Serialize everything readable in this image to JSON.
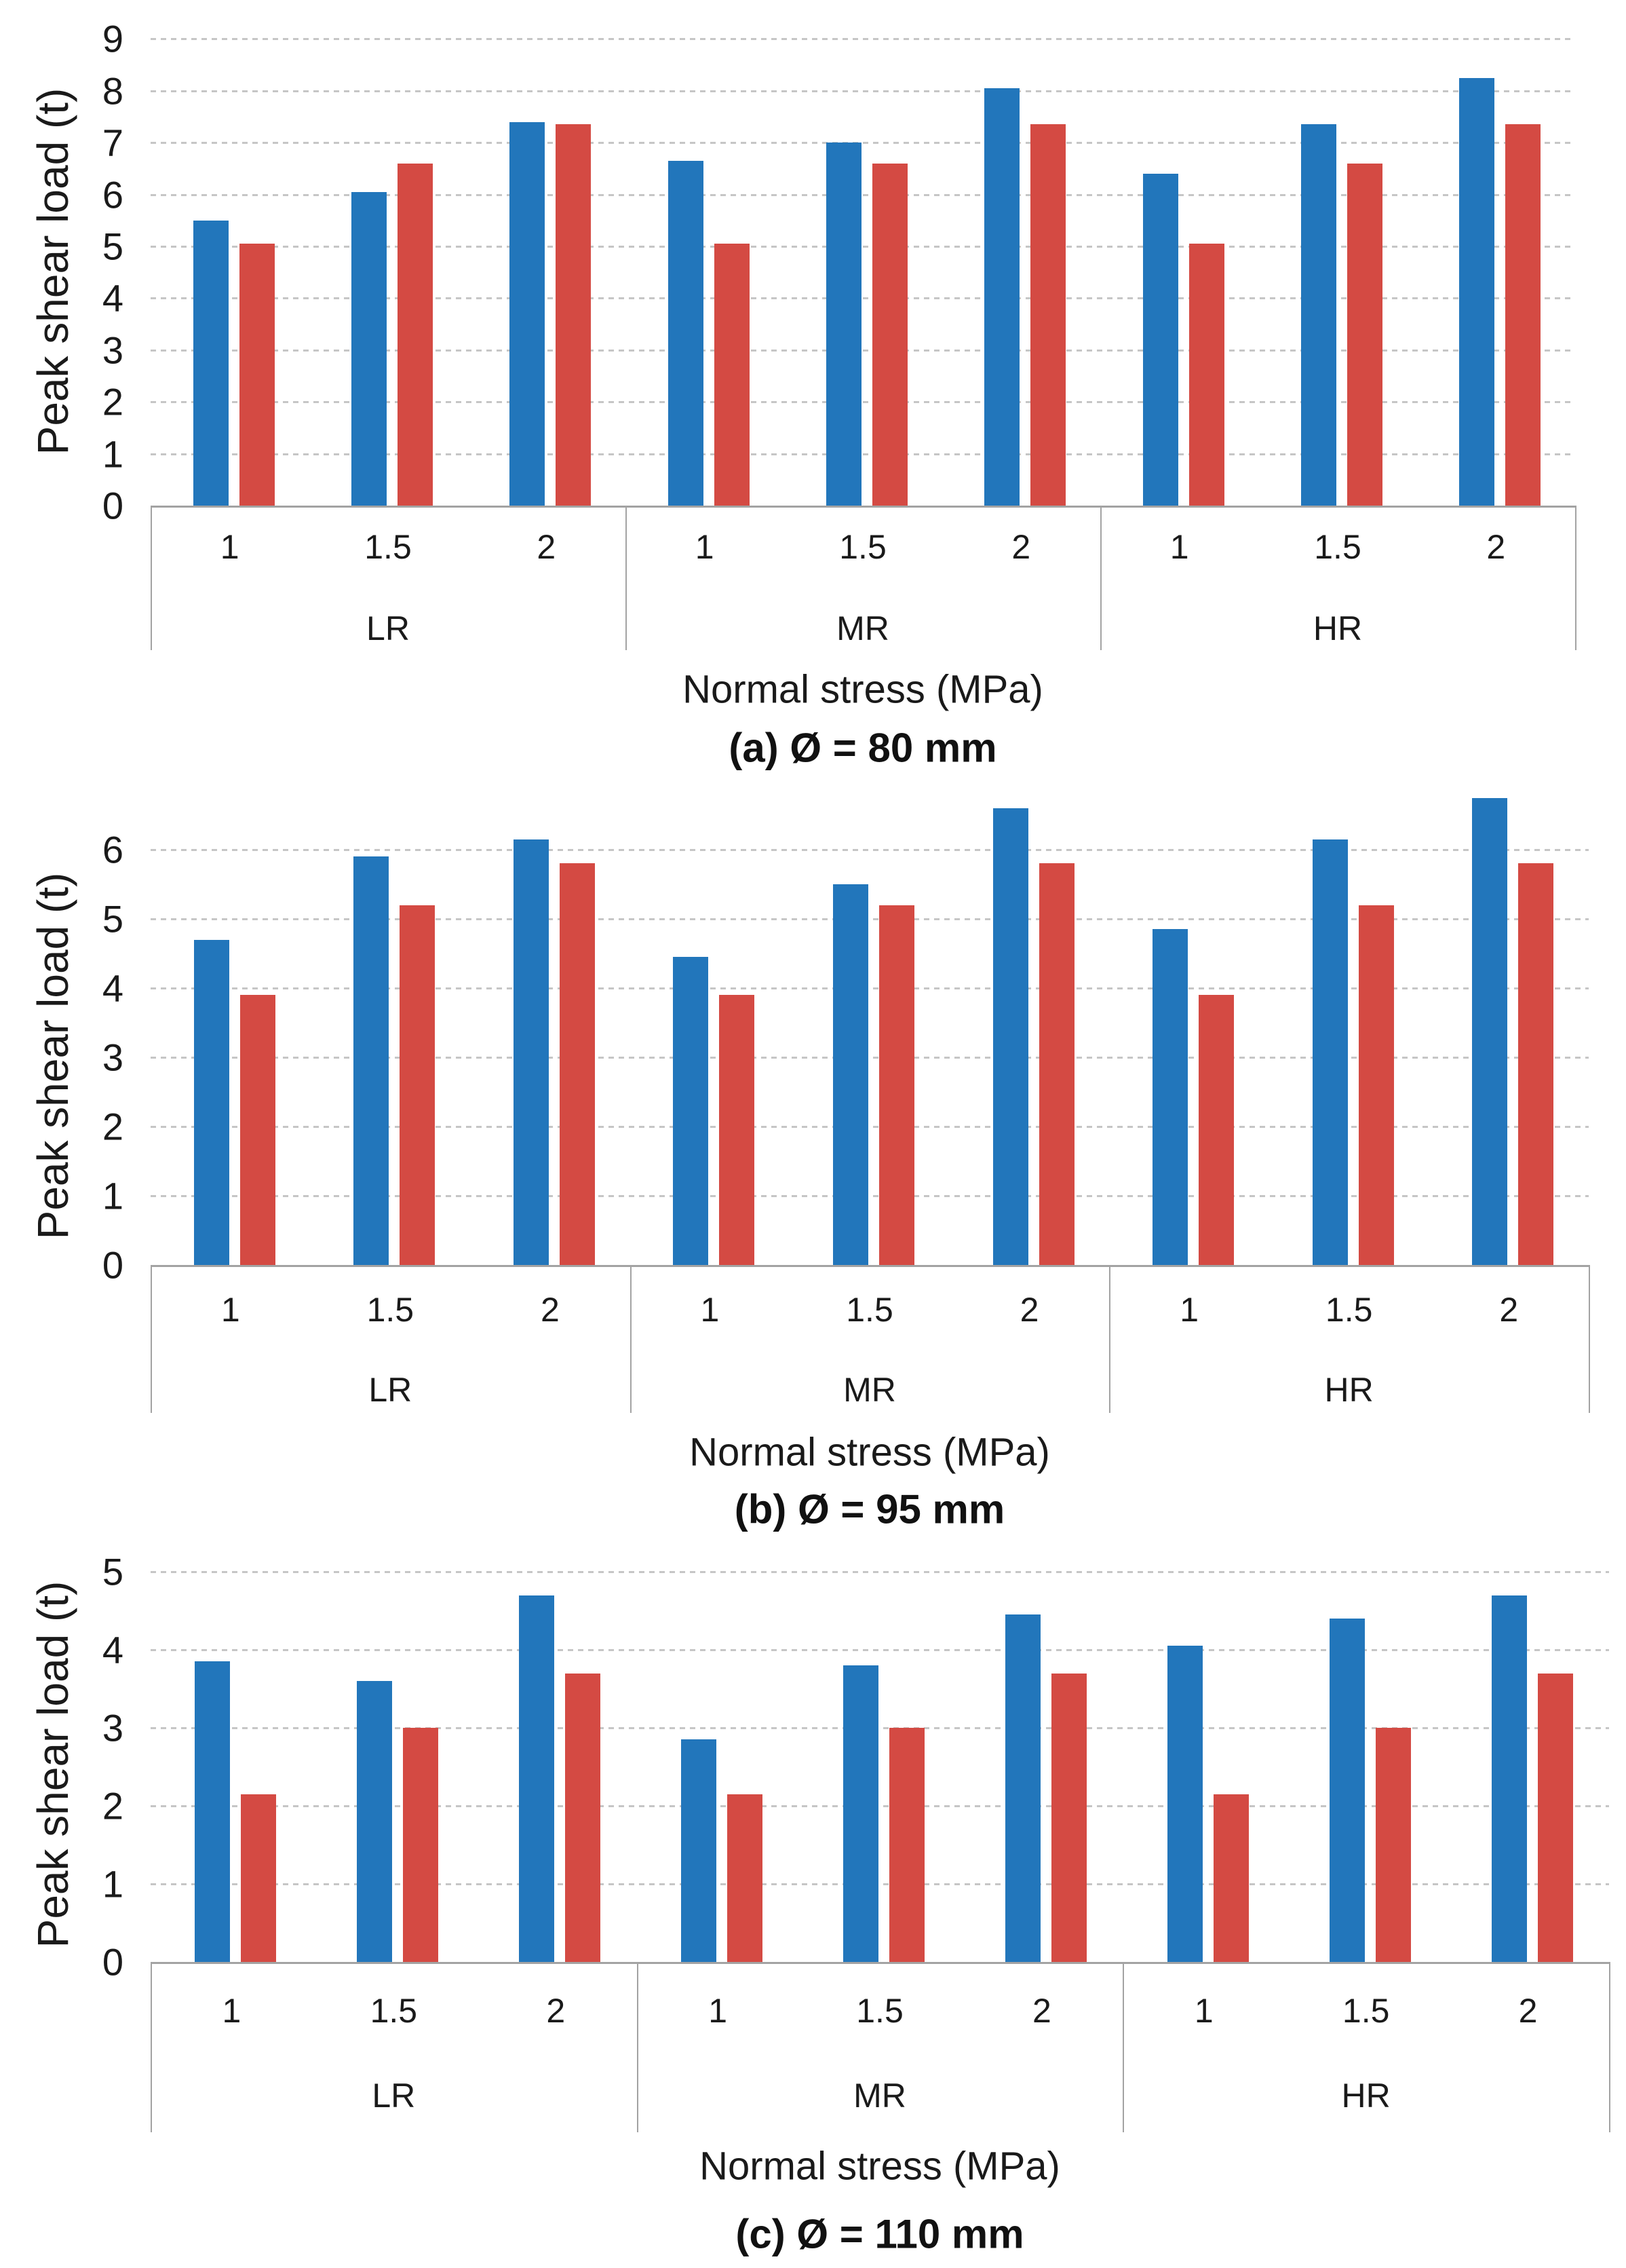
{
  "figure": {
    "colors": {
      "series_blue": "#2276BB",
      "series_red": "#D44A43",
      "gridline": "#c6c6c6",
      "axis_line": "#a3a3a3",
      "text": "#1a1a1a"
    }
  },
  "chart_data": [
    {
      "type": "bar",
      "title": "(a) Ø = 80 mm",
      "xlabel": "Normal stress (MPa)",
      "ylabel": "Peak shear load (t)",
      "ylim": [
        0,
        9
      ],
      "y_ticks": [
        0,
        1,
        2,
        3,
        4,
        5,
        6,
        7,
        8,
        9
      ],
      "grid": "dashed-horizontal",
      "legend": "none",
      "groups": [
        "LR",
        "MR",
        "HR"
      ],
      "categories": [
        "1",
        "1.5",
        "2"
      ],
      "series": [
        {
          "name": "blue",
          "color": "#2276BB",
          "values": [
            [
              5.5,
              6.05,
              7.4
            ],
            [
              6.65,
              7.0,
              8.05
            ],
            [
              6.4,
              7.35,
              8.25
            ]
          ]
        },
        {
          "name": "red",
          "color": "#D44A43",
          "values": [
            [
              5.05,
              6.6,
              7.35
            ],
            [
              5.05,
              6.6,
              7.35
            ],
            [
              5.05,
              6.6,
              7.35
            ]
          ]
        }
      ]
    },
    {
      "type": "bar",
      "title": "(b) Ø = 95 mm",
      "xlabel": "Normal stress (MPa)",
      "ylabel": "Peak shear load (t)",
      "ylim": [
        0,
        7
      ],
      "y_ticks": [
        0,
        1,
        2,
        3,
        4,
        5,
        6
      ],
      "grid": "dashed-horizontal",
      "legend": "none",
      "groups": [
        "LR",
        "MR",
        "HR"
      ],
      "categories": [
        "1",
        "1.5",
        "2"
      ],
      "series": [
        {
          "name": "blue",
          "color": "#2276BB",
          "values": [
            [
              4.7,
              5.9,
              6.15
            ],
            [
              4.45,
              5.5,
              6.6
            ],
            [
              4.85,
              6.15,
              6.75
            ]
          ]
        },
        {
          "name": "red",
          "color": "#D44A43",
          "values": [
            [
              3.9,
              5.2,
              5.8
            ],
            [
              3.9,
              5.2,
              5.8
            ],
            [
              3.9,
              5.2,
              5.8
            ]
          ]
        }
      ]
    },
    {
      "type": "bar",
      "title": "(c) Ø = 110 mm",
      "xlabel": "Normal stress (MPa)",
      "ylabel": "Peak shear load (t)",
      "ylim": [
        0,
        5.3
      ],
      "y_ticks": [
        0,
        1,
        2,
        3,
        4,
        5
      ],
      "grid": "dashed-horizontal",
      "legend": "none",
      "groups": [
        "LR",
        "MR",
        "HR"
      ],
      "categories": [
        "1",
        "1.5",
        "2"
      ],
      "series": [
        {
          "name": "blue",
          "color": "#2276BB",
          "values": [
            [
              3.85,
              3.6,
              4.7
            ],
            [
              2.85,
              3.8,
              4.45
            ],
            [
              4.05,
              4.4,
              4.7
            ]
          ]
        },
        {
          "name": "red",
          "color": "#D44A43",
          "values": [
            [
              2.15,
              3.0,
              3.7
            ],
            [
              2.15,
              3.0,
              3.7
            ],
            [
              2.15,
              3.0,
              3.7
            ]
          ]
        }
      ]
    }
  ]
}
